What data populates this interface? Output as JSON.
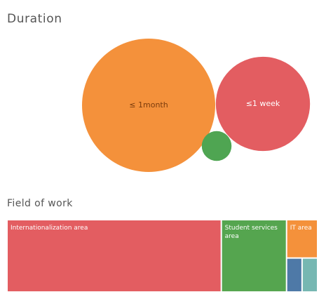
{
  "chart_data": [
    {
      "type": "bubble",
      "title": "Duration",
      "categories": [
        "≤ 1month",
        "≤1 week",
        null
      ],
      "values": [
        20,
        10,
        1
      ],
      "colors": [
        "#f4913b",
        "#e35d61",
        "#4fa552"
      ]
    },
    {
      "type": "treemap",
      "title": "Field of work",
      "categories": [
        "Internationalization area",
        "Student services area",
        "IT area",
        null,
        null
      ],
      "values": [
        69,
        21,
        5,
        2.5,
        2.5
      ],
      "colors": [
        "#e35d61",
        "#55a54f",
        "#f4913b",
        "#4e79a7",
        "#76b7b2"
      ]
    }
  ]
}
